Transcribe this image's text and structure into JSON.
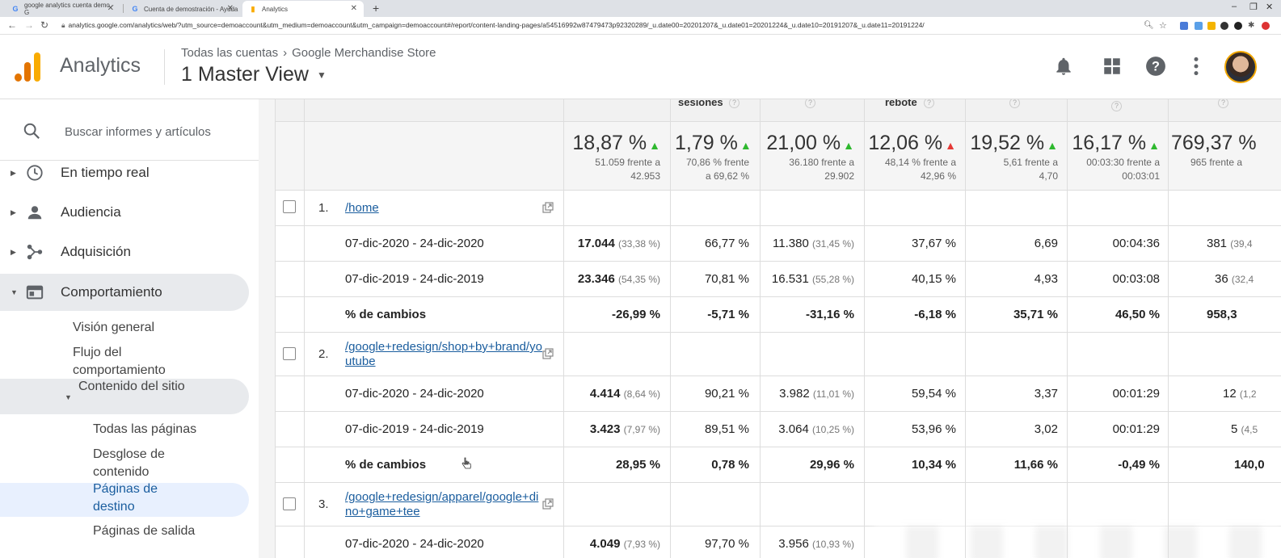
{
  "browser": {
    "tabs": [
      {
        "title": "google analytics cuenta demo - G",
        "active": false
      },
      {
        "title": "Cuenta de demostración - Ayuda",
        "active": false
      },
      {
        "title": "Analytics",
        "active": true
      }
    ],
    "new_tab": "+",
    "url": "analytics.google.com/analytics/web/?utm_source=demoaccount&utm_medium=demoaccount&utm_campaign=demoaccount#/report/content-landing-pages/a54516992w87479473p92320289/_u.date00=20201207&_u.date01=20201224&_u.date10=20191207&_u.date11=20191224/"
  },
  "header": {
    "app_title": "Analytics",
    "breadcrumb_account": "Todas las cuentas",
    "breadcrumb_property": "Google Merchandise Store",
    "view_name": "1 Master View"
  },
  "sidebar": {
    "search_placeholder": "Buscar informes y artículos",
    "items": [
      {
        "label": "En tiempo real",
        "icon": "clock-icon"
      },
      {
        "label": "Audiencia",
        "icon": "person-icon"
      },
      {
        "label": "Adquisición",
        "icon": "acquisition-icon"
      },
      {
        "label": "Comportamiento",
        "icon": "behavior-icon"
      }
    ],
    "behavior_sub": {
      "overview": "Visión general",
      "flow": "Flujo del comportamiento",
      "site_content": "Contenido del sitio",
      "all_pages": "Todas las páginas",
      "content_drilldown": "Desglose de contenido",
      "landing_pages": "Páginas de destino",
      "exit_pages": "Páginas de salida"
    }
  },
  "table": {
    "top_labels": {
      "sessions": "sesiones",
      "bounce": "rebote"
    },
    "summary": [
      {
        "value": "18,87 %",
        "dir": "up",
        "sub1": "51.059 frente a",
        "sub2": "42.953"
      },
      {
        "value": "1,79 %",
        "dir": "up",
        "sub1": "70,86 % frente",
        "sub2": "a 69,62 %"
      },
      {
        "value": "21,00 %",
        "dir": "up",
        "sub1": "36.180 frente a",
        "sub2": "29.902"
      },
      {
        "value": "12,06 %",
        "dir": "down",
        "sub1": "48,14 % frente a",
        "sub2": "42,96 %"
      },
      {
        "value": "19,52 %",
        "dir": "up",
        "sub1": "5,61 frente a",
        "sub2": "4,70"
      },
      {
        "value": "16,17 %",
        "dir": "up",
        "sub1": "00:03:30 frente a",
        "sub2": "00:03:01"
      },
      {
        "value": "769,37 %",
        "dir": "up",
        "sub1": "965 frente a",
        "sub2": ""
      }
    ],
    "groups": [
      {
        "num": "1.",
        "page": "/home",
        "rows": [
          {
            "label": "07-dic-2020 - 24-dic-2020",
            "sessions": "17.044",
            "sessions_pct": "(33,38 %)",
            "new_sessions": "66,77 %",
            "new_users": "11.380",
            "new_users_pct": "(31,45 %)",
            "bounce": "37,67 %",
            "pages": "6,69",
            "duration": "00:04:36",
            "conv": "381",
            "conv_pct": "(39,4"
          },
          {
            "label": "07-dic-2019 - 24-dic-2019",
            "sessions": "23.346",
            "sessions_pct": "(54,35 %)",
            "new_sessions": "70,81 %",
            "new_users": "16.531",
            "new_users_pct": "(55,28 %)",
            "bounce": "40,15 %",
            "pages": "4,93",
            "duration": "00:03:08",
            "conv": "36",
            "conv_pct": "(32,4"
          },
          {
            "label": "% de cambios",
            "sessions": "-26,99 %",
            "sessions_pct": "",
            "new_sessions": "-5,71 %",
            "new_users": "-31,16 %",
            "new_users_pct": "",
            "bounce": "-6,18 %",
            "pages": "35,71 %",
            "duration": "46,50 %",
            "conv": "958,3",
            "conv_pct": ""
          }
        ]
      },
      {
        "num": "2.",
        "page": "/google+redesign/shop+by+brand/youtube",
        "rows": [
          {
            "label": "07-dic-2020 - 24-dic-2020",
            "sessions": "4.414",
            "sessions_pct": "(8,64 %)",
            "new_sessions": "90,21 %",
            "new_users": "3.982",
            "new_users_pct": "(11,01 %)",
            "bounce": "59,54 %",
            "pages": "3,37",
            "duration": "00:01:29",
            "conv": "12",
            "conv_pct": "(1,2"
          },
          {
            "label": "07-dic-2019 - 24-dic-2019",
            "sessions": "3.423",
            "sessions_pct": "(7,97 %)",
            "new_sessions": "89,51 %",
            "new_users": "3.064",
            "new_users_pct": "(10,25 %)",
            "bounce": "53,96 %",
            "pages": "3,02",
            "duration": "00:01:29",
            "conv": "5",
            "conv_pct": "(4,5"
          },
          {
            "label": "% de cambios",
            "sessions": "28,95 %",
            "sessions_pct": "",
            "new_sessions": "0,78 %",
            "new_users": "29,96 %",
            "new_users_pct": "",
            "bounce": "10,34 %",
            "pages": "11,66 %",
            "duration": "-0,49 %",
            "conv": "140,0",
            "conv_pct": ""
          }
        ]
      },
      {
        "num": "3.",
        "page": "/google+redesign/apparel/google+dino+game+tee",
        "rows": [
          {
            "label": "07-dic-2020 - 24-dic-2020",
            "sessions": "4.049",
            "sessions_pct": "(7,93 %)",
            "new_sessions": "97,70 %",
            "new_users": "3.956",
            "new_users_pct": "(10,93 %)",
            "bounce": "",
            "pages": "",
            "duration": "",
            "conv": "",
            "conv_pct": ""
          }
        ]
      }
    ]
  },
  "colors": {
    "accent": "#1a5d9e",
    "up": "#2eb82e",
    "down": "#e53935",
    "logo_orange": "#f9ab00",
    "logo_dark": "#e37400"
  }
}
